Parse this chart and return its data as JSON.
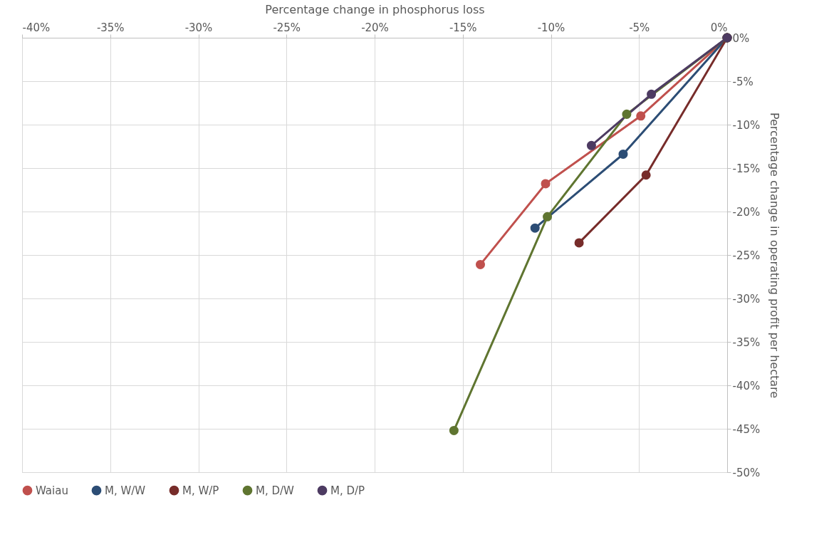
{
  "chart_data": {
    "type": "line",
    "xlabel": "Percentage change in phosphorus loss",
    "ylabel": "Percentage change in operating profit per hectare",
    "xlim": [
      -40,
      0
    ],
    "ylim": [
      -50,
      0
    ],
    "xticks": [
      {
        "value": -40,
        "label": "-40%"
      },
      {
        "value": -35,
        "label": "-35%"
      },
      {
        "value": -30,
        "label": "-30%"
      },
      {
        "value": -25,
        "label": "-25%"
      },
      {
        "value": -20,
        "label": "-20%"
      },
      {
        "value": -15,
        "label": "-15%"
      },
      {
        "value": -10,
        "label": "-10%"
      },
      {
        "value": -5,
        "label": "-5%"
      },
      {
        "value": 0,
        "label": "0%"
      }
    ],
    "yticks": [
      {
        "value": 0,
        "label": "0%"
      },
      {
        "value": -5,
        "label": "-5%"
      },
      {
        "value": -10,
        "label": "-10%"
      },
      {
        "value": -15,
        "label": "-15%"
      },
      {
        "value": -20,
        "label": "-20%"
      },
      {
        "value": -25,
        "label": "-25%"
      },
      {
        "value": -30,
        "label": "-30%"
      },
      {
        "value": -35,
        "label": "-35%"
      },
      {
        "value": -40,
        "label": "-40%"
      },
      {
        "value": -45,
        "label": "-45%"
      },
      {
        "value": -50,
        "label": "-50%"
      }
    ],
    "grid": true,
    "legend": "bottom",
    "marker": "circle",
    "line_style": "solid",
    "series": [
      {
        "name": "Waiau",
        "color": "#c0504d",
        "x": [
          0,
          -4.9,
          -10.3,
          -14.0
        ],
        "values": [
          0,
          -9.0,
          -16.8,
          -26.1
        ]
      },
      {
        "name": "M, W/W",
        "color": "#2c4d75",
        "x": [
          0,
          -5.9,
          -10.9
        ],
        "values": [
          0,
          -13.4,
          -21.9
        ]
      },
      {
        "name": "M, W/P",
        "color": "#772c2a",
        "x": [
          0,
          -4.6,
          -8.4
        ],
        "values": [
          0,
          -15.8,
          -23.6
        ]
      },
      {
        "name": "M, D/W",
        "color": "#5f7530",
        "x": [
          0,
          -5.7,
          -10.2,
          -15.5
        ],
        "values": [
          0,
          -8.8,
          -20.6,
          -45.2
        ]
      },
      {
        "name": "M, D/P",
        "color": "#4d3b62",
        "x": [
          0,
          -4.3,
          -7.7
        ],
        "values": [
          0,
          -6.5,
          -12.4
        ]
      }
    ]
  }
}
